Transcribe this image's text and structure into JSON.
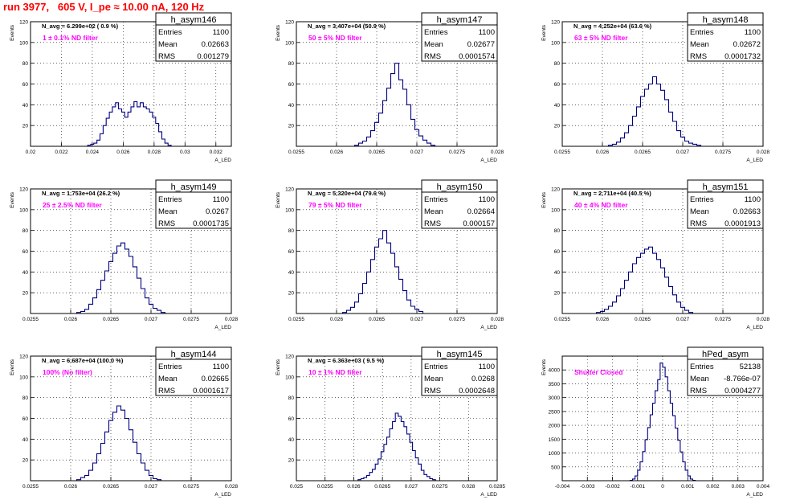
{
  "page_title": "run 3977,   605 V, I_pe ≈ 10.00 nA, 120 Hz",
  "axis": {
    "ylabel": "Events",
    "xlabel": "A_LED"
  },
  "colors": {
    "title": "#ff0000",
    "annotation": "#ff00ff",
    "histogram": "#000080",
    "grid": "#000000"
  },
  "chart_data": [
    {
      "type": "bar",
      "name": "h_asym146",
      "stats": {
        "entries": "1100",
        "mean": "0.02663",
        "rms": "0.001279"
      },
      "navg": "N_avg = 6.299e+02 ( 0.9 %)",
      "annotation": "1 ± 0.1% ND filter",
      "xlim": [
        0.02,
        0.033
      ],
      "ylim": [
        0,
        120
      ],
      "xticks": [
        "0.02",
        "0.022",
        "0.024",
        "0.026",
        "0.028",
        "0.03",
        "0.032"
      ],
      "yticks": [
        "20",
        "40",
        "60",
        "80",
        "100",
        "120"
      ],
      "bins": [
        [
          0.0238,
          1
        ],
        [
          0.024,
          2
        ],
        [
          0.0242,
          3
        ],
        [
          0.0244,
          6
        ],
        [
          0.0246,
          12
        ],
        [
          0.0248,
          20
        ],
        [
          0.025,
          27
        ],
        [
          0.0252,
          33
        ],
        [
          0.0254,
          38
        ],
        [
          0.0256,
          42
        ],
        [
          0.0258,
          36
        ],
        [
          0.026,
          33
        ],
        [
          0.0262,
          28
        ],
        [
          0.0264,
          33
        ],
        [
          0.0266,
          38
        ],
        [
          0.0268,
          43
        ],
        [
          0.027,
          38
        ],
        [
          0.0272,
          42
        ],
        [
          0.0274,
          38
        ],
        [
          0.0276,
          36
        ],
        [
          0.0278,
          33
        ],
        [
          0.028,
          28
        ],
        [
          0.0282,
          22
        ],
        [
          0.0284,
          14
        ],
        [
          0.0286,
          7
        ],
        [
          0.0288,
          3
        ],
        [
          0.029,
          1
        ]
      ]
    },
    {
      "type": "bar",
      "name": "h_asym147",
      "stats": {
        "entries": "1100",
        "mean": "0.02677",
        "rms": "0.0001574"
      },
      "navg": "N_avg = 3.407e+04 (50.9 %)",
      "annotation": "50 ± 5% ND filter",
      "xlim": [
        0.0255,
        0.028
      ],
      "ylim": [
        0,
        120
      ],
      "xticks": [
        "0.0255",
        "0.026",
        "0.0265",
        "0.027",
        "0.0275",
        "0.028"
      ],
      "yticks": [
        "20",
        "40",
        "60",
        "80",
        "100",
        "120"
      ],
      "bins": [
        [
          0.02625,
          1
        ],
        [
          0.0263,
          3
        ],
        [
          0.02635,
          5
        ],
        [
          0.0264,
          9
        ],
        [
          0.02645,
          15
        ],
        [
          0.0265,
          23
        ],
        [
          0.02655,
          32
        ],
        [
          0.0266,
          44
        ],
        [
          0.02665,
          56
        ],
        [
          0.0267,
          70
        ],
        [
          0.02675,
          80
        ],
        [
          0.0268,
          64
        ],
        [
          0.02685,
          55
        ],
        [
          0.0269,
          40
        ],
        [
          0.02695,
          26
        ],
        [
          0.027,
          16
        ],
        [
          0.02705,
          10
        ],
        [
          0.0271,
          6
        ],
        [
          0.02715,
          3
        ],
        [
          0.0272,
          1
        ]
      ]
    },
    {
      "type": "bar",
      "name": "h_asym148",
      "stats": {
        "entries": "1100",
        "mean": "0.02672",
        "rms": "0.0001732"
      },
      "navg": "N_avg = 4.252e+04 (63.6 %)",
      "annotation": "63 ± 5% ND filter",
      "xlim": [
        0.0255,
        0.028
      ],
      "ylim": [
        0,
        120
      ],
      "xticks": [
        "0.0255",
        "0.026",
        "0.0265",
        "0.027",
        "0.0275",
        "0.028"
      ],
      "yticks": [
        "20",
        "40",
        "60",
        "80",
        "100",
        "120"
      ],
      "bins": [
        [
          0.0261,
          1
        ],
        [
          0.02615,
          2
        ],
        [
          0.0262,
          4
        ],
        [
          0.02625,
          8
        ],
        [
          0.0263,
          13
        ],
        [
          0.02635,
          20
        ],
        [
          0.0264,
          29
        ],
        [
          0.02645,
          38
        ],
        [
          0.0265,
          48
        ],
        [
          0.02655,
          55
        ],
        [
          0.0266,
          60
        ],
        [
          0.02665,
          67
        ],
        [
          0.0267,
          60
        ],
        [
          0.02675,
          54
        ],
        [
          0.0268,
          45
        ],
        [
          0.02685,
          33
        ],
        [
          0.0269,
          24
        ],
        [
          0.02695,
          15
        ],
        [
          0.027,
          9
        ],
        [
          0.02705,
          5
        ],
        [
          0.0271,
          3
        ],
        [
          0.02715,
          2
        ],
        [
          0.0272,
          1
        ]
      ]
    },
    {
      "type": "bar",
      "name": "h_asym149",
      "stats": {
        "entries": "1100",
        "mean": "0.0267",
        "rms": "0.0001735"
      },
      "navg": "N_avg = 1.753e+04 (26.2 %)",
      "annotation": "25 ± 2.5% ND filter",
      "xlim": [
        0.0255,
        0.028
      ],
      "ylim": [
        0,
        120
      ],
      "xticks": [
        "0.0255",
        "0.026",
        "0.0265",
        "0.027",
        "0.0275",
        "0.028"
      ],
      "yticks": [
        "20",
        "40",
        "60",
        "80",
        "100",
        "120"
      ],
      "bins": [
        [
          0.0261,
          1
        ],
        [
          0.02615,
          2
        ],
        [
          0.0262,
          4
        ],
        [
          0.02625,
          9
        ],
        [
          0.0263,
          15
        ],
        [
          0.02635,
          23
        ],
        [
          0.0264,
          32
        ],
        [
          0.02645,
          41
        ],
        [
          0.0265,
          50
        ],
        [
          0.02655,
          58
        ],
        [
          0.0266,
          65
        ],
        [
          0.02665,
          68
        ],
        [
          0.0267,
          62
        ],
        [
          0.02675,
          55
        ],
        [
          0.0268,
          45
        ],
        [
          0.02685,
          34
        ],
        [
          0.0269,
          24
        ],
        [
          0.02695,
          15
        ],
        [
          0.027,
          9
        ],
        [
          0.02705,
          5
        ],
        [
          0.0271,
          3
        ],
        [
          0.02715,
          1
        ]
      ]
    },
    {
      "type": "bar",
      "name": "h_asym150",
      "stats": {
        "entries": "1100",
        "mean": "0.02664",
        "rms": "0.000157"
      },
      "navg": "N_avg = 5.320e+04 (79.6 %)",
      "annotation": "79 ± 5% ND filter",
      "xlim": [
        0.0255,
        0.028
      ],
      "ylim": [
        0,
        120
      ],
      "xticks": [
        "0.0255",
        "0.026",
        "0.0265",
        "0.027",
        "0.0275",
        "0.028"
      ],
      "yticks": [
        "20",
        "40",
        "60",
        "80",
        "100",
        "120"
      ],
      "bins": [
        [
          0.0261,
          1
        ],
        [
          0.02615,
          3
        ],
        [
          0.0262,
          6
        ],
        [
          0.02625,
          11
        ],
        [
          0.0263,
          19
        ],
        [
          0.02635,
          29
        ],
        [
          0.0264,
          40
        ],
        [
          0.02645,
          52
        ],
        [
          0.0265,
          64
        ],
        [
          0.02655,
          72
        ],
        [
          0.0266,
          80
        ],
        [
          0.02665,
          68
        ],
        [
          0.0267,
          58
        ],
        [
          0.02675,
          45
        ],
        [
          0.0268,
          33
        ],
        [
          0.02685,
          22
        ],
        [
          0.0269,
          13
        ],
        [
          0.02695,
          7
        ],
        [
          0.027,
          4
        ],
        [
          0.02705,
          2
        ]
      ]
    },
    {
      "type": "bar",
      "name": "h_asym151",
      "stats": {
        "entries": "1100",
        "mean": "0.02663",
        "rms": "0.0001913"
      },
      "navg": "N_avg = 2.711e+04 (40.5 %)",
      "annotation": "40 ± 4% ND filter",
      "xlim": [
        0.0255,
        0.028
      ],
      "ylim": [
        0,
        120
      ],
      "xticks": [
        "0.0255",
        "0.026",
        "0.0265",
        "0.027",
        "0.0275",
        "0.028"
      ],
      "yticks": [
        "20",
        "40",
        "60",
        "80",
        "100",
        "120"
      ],
      "bins": [
        [
          0.02595,
          1
        ],
        [
          0.026,
          2
        ],
        [
          0.02605,
          4
        ],
        [
          0.0261,
          7
        ],
        [
          0.02615,
          11
        ],
        [
          0.0262,
          17
        ],
        [
          0.02625,
          24
        ],
        [
          0.0263,
          32
        ],
        [
          0.02635,
          40
        ],
        [
          0.0264,
          48
        ],
        [
          0.02645,
          54
        ],
        [
          0.0265,
          58
        ],
        [
          0.02655,
          62
        ],
        [
          0.0266,
          64
        ],
        [
          0.02665,
          58
        ],
        [
          0.0267,
          52
        ],
        [
          0.02675,
          44
        ],
        [
          0.0268,
          35
        ],
        [
          0.02685,
          26
        ],
        [
          0.0269,
          18
        ],
        [
          0.02695,
          11
        ],
        [
          0.027,
          6
        ],
        [
          0.02705,
          3
        ],
        [
          0.0271,
          1
        ]
      ]
    },
    {
      "type": "bar",
      "name": "h_asym144",
      "stats": {
        "entries": "1100",
        "mean": "0.02665",
        "rms": "0.0001617"
      },
      "navg": "N_avg = 6.687e+04 (100.0 %)",
      "annotation": "100% (No filter)",
      "xlim": [
        0.0255,
        0.028
      ],
      "ylim": [
        0,
        120
      ],
      "xticks": [
        "0.0255",
        "0.026",
        "0.0265",
        "0.027",
        "0.0275",
        "0.028"
      ],
      "yticks": [
        "20",
        "40",
        "60",
        "80",
        "100",
        "120"
      ],
      "bins": [
        [
          0.0261,
          1
        ],
        [
          0.02615,
          3
        ],
        [
          0.0262,
          5
        ],
        [
          0.02625,
          10
        ],
        [
          0.0263,
          17
        ],
        [
          0.02635,
          26
        ],
        [
          0.0264,
          36
        ],
        [
          0.02645,
          47
        ],
        [
          0.0265,
          58
        ],
        [
          0.02655,
          66
        ],
        [
          0.0266,
          72
        ],
        [
          0.02665,
          68
        ],
        [
          0.0267,
          60
        ],
        [
          0.02675,
          49
        ],
        [
          0.0268,
          37
        ],
        [
          0.02685,
          26
        ],
        [
          0.0269,
          17
        ],
        [
          0.02695,
          10
        ],
        [
          0.027,
          5
        ],
        [
          0.02705,
          2
        ],
        [
          0.0271,
          1
        ]
      ]
    },
    {
      "type": "bar",
      "name": "h_asym145",
      "stats": {
        "entries": "1100",
        "mean": "0.0268",
        "rms": "0.0002648"
      },
      "navg": "N_avg = 6.363e+03 ( 9.5 %)",
      "annotation": "10 ± 1% ND filter",
      "xlim": [
        0.025,
        0.0285
      ],
      "ylim": [
        0,
        120
      ],
      "xticks": [
        "0.025",
        "0.0255",
        "0.026",
        "0.0265",
        "0.027",
        "0.0275",
        "0.028",
        "0.0285"
      ],
      "yticks": [
        "20",
        "40",
        "60",
        "80",
        "100",
        "120"
      ],
      "bins": [
        [
          0.0261,
          1
        ],
        [
          0.02615,
          2
        ],
        [
          0.0262,
          3
        ],
        [
          0.02625,
          5
        ],
        [
          0.0263,
          8
        ],
        [
          0.02635,
          11
        ],
        [
          0.0264,
          16
        ],
        [
          0.02645,
          21
        ],
        [
          0.0265,
          28
        ],
        [
          0.02655,
          35
        ],
        [
          0.0266,
          42
        ],
        [
          0.02665,
          50
        ],
        [
          0.0267,
          57
        ],
        [
          0.02675,
          65
        ],
        [
          0.0268,
          62
        ],
        [
          0.02685,
          57
        ],
        [
          0.0269,
          52
        ],
        [
          0.02695,
          45
        ],
        [
          0.027,
          37
        ],
        [
          0.02705,
          29
        ],
        [
          0.0271,
          22
        ],
        [
          0.02715,
          16
        ],
        [
          0.0272,
          10
        ],
        [
          0.02725,
          6
        ],
        [
          0.0273,
          4
        ],
        [
          0.02735,
          2
        ],
        [
          0.0274,
          1
        ]
      ]
    },
    {
      "type": "bar",
      "name": "hPed_asym",
      "stats": {
        "entries": "52138",
        "mean": "-8.766e-07",
        "rms": "0.0004277"
      },
      "navg": "",
      "annotation": "Shutter Closed",
      "xlim": [
        -0.004,
        0.004
      ],
      "ylim": [
        0,
        4500
      ],
      "xticks": [
        "-0.004",
        "-0.003",
        "-0.002",
        "-0.001",
        "0",
        "0.001",
        "0.002",
        "0.003",
        "0.004"
      ],
      "yticks": [
        "500",
        "1000",
        "1500",
        "2000",
        "2500",
        "3000",
        "3500",
        "4000"
      ],
      "bins": [
        [
          -0.00125,
          15
        ],
        [
          -0.00115,
          60
        ],
        [
          -0.00105,
          170
        ],
        [
          -0.00095,
          380
        ],
        [
          -0.00085,
          680
        ],
        [
          -0.00075,
          1050
        ],
        [
          -0.00065,
          1480
        ],
        [
          -0.00055,
          1920
        ],
        [
          -0.00045,
          2380
        ],
        [
          -0.00035,
          2800
        ],
        [
          -0.00025,
          3250
        ],
        [
          -0.00015,
          3650
        ],
        [
          -5e-05,
          4250
        ],
        [
          5e-05,
          4100
        ],
        [
          0.00015,
          3750
        ],
        [
          0.00025,
          3250
        ],
        [
          0.00035,
          2800
        ],
        [
          0.00045,
          2350
        ],
        [
          0.00055,
          1900
        ],
        [
          0.00065,
          1460
        ],
        [
          0.00075,
          1040
        ],
        [
          0.00085,
          680
        ],
        [
          0.00095,
          380
        ],
        [
          0.00105,
          170
        ],
        [
          0.00115,
          60
        ],
        [
          0.00125,
          15
        ]
      ]
    }
  ]
}
